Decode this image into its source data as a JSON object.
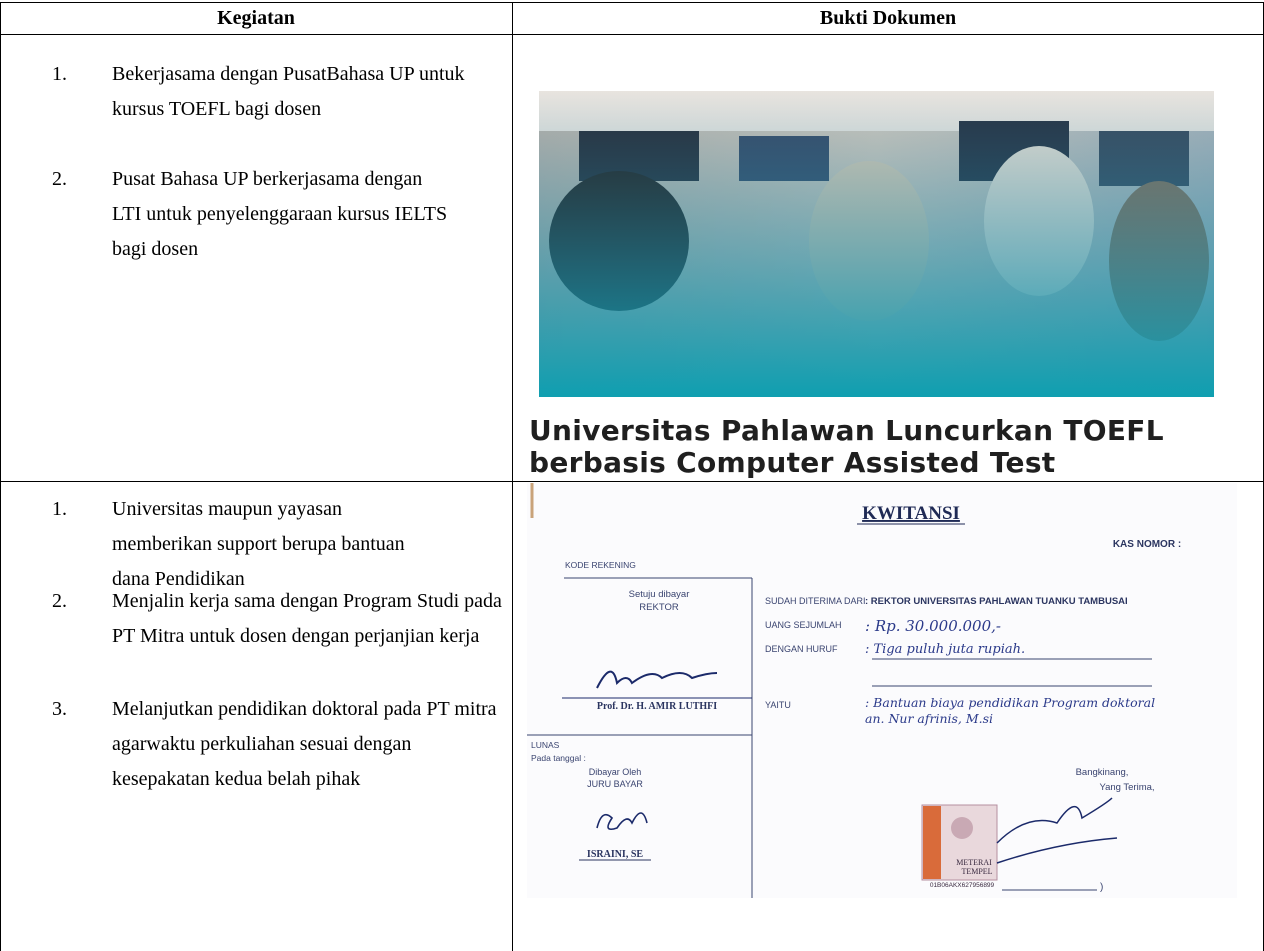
{
  "table": {
    "header": [
      "Kegiatan",
      "Bukti Dokumen"
    ],
    "rows": [
      {
        "items": [
          {
            "number": "1.",
            "text": "Bekerjasama dengan PusatBahasa UP untuk kursus TOEFL bagi dosen"
          },
          {
            "number": "2.",
            "text": "Pusat Bahasa UP berkerjasama dengan LTI untuk penyelenggaraan kursus IELTS bagi dosen"
          }
        ],
        "evidence": {
          "headline": [
            "Universitas Pahlawan Luncurkan TOEFL",
            "berbasis Computer Assisted Test"
          ]
        }
      },
      {
        "items": [
          {
            "number": "1.",
            "text": "Universitas maupun yayasan memberikan support berupa bantuan dana Pendidikan"
          },
          {
            "number": "2.",
            "text": "Menjalin kerja sama dengan Program Studi pada PT Mitra untuk dosen dengan perjanjian kerja"
          },
          {
            "number": "3.",
            "text": "Melanjutkan pendidikan doktoral pada PT mitra agarwaktu perkuliahan sesuai dengan kesepakatan kedua belah pihak"
          }
        ],
        "evidence": {
          "receipt": {
            "title": "KWITANSI",
            "cash_number": "KAS NOMOR :",
            "account_code": "KODE REKENING",
            "approved": [
              "Setuju dibayar",
              "REKTOR"
            ],
            "rector_name": "Prof. Dr. H. AMIR LUTHFI",
            "paid": [
              "LUNAS",
              "Pada tanggal :"
            ],
            "paid_by": [
              "Dibayar Oleh",
              "JURU BAYAR"
            ],
            "cashier_name": "ISRAINI, SE",
            "fields": [
              {
                "label": "SUDAH DITERIMA DARI",
                "value": ": REKTOR UNIVERSITAS PAHLAWAN TUANKU TAMBUSAI"
              },
              {
                "label": "UANG SEJUMLAH",
                "value": ": Rp. 30.000.000,-"
              },
              {
                "label": "DENGAN HURUF",
                "value": ": Tiga puluh juta rupiah."
              },
              {
                "label": "YAITU",
                "value": ": Bantuan biaya pendidikan Program doktoral an. Nur afrinis, M.si"
              }
            ],
            "place": "Bangkinang,",
            "receiver": "Yang Terima,",
            "stamp": [
              "METERAI",
              "TEMPEL",
              "01B06AKX627956899"
            ],
            "closing": ")"
          }
        }
      }
    ]
  }
}
